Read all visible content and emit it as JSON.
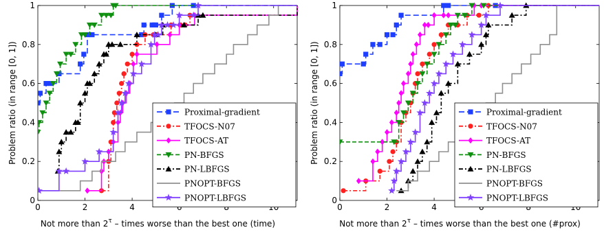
{
  "chart_data": [
    {
      "type": "line",
      "xlabel_pre": "Not more than 2",
      "xlabel_sup": "τ",
      "xlabel_post": " – times worse than the best one (time)",
      "ylabel": "Problem ratio (in range [0, 1])",
      "xlim": [
        0,
        11
      ],
      "ylim": [
        0,
        1
      ],
      "xticks": [
        0,
        2,
        4,
        6,
        8,
        10
      ],
      "yticks": [
        0,
        0.2,
        0.4,
        0.6,
        0.8,
        1
      ],
      "legend_position": "bottom-right",
      "grid": false,
      "series": [
        {
          "name": "Proximal-gradient",
          "color": "#1f3fff",
          "dash": "8,4",
          "marker": "square",
          "x": [
            0,
            0.1,
            0.35,
            0.55,
            0.9,
            1.8,
            1.95,
            2.1,
            2.3,
            4.4,
            4.5,
            4.85,
            4.95,
            5.0,
            5.25,
            5.7,
            6.6,
            11
          ],
          "y": [
            0.5,
            0.55,
            0.6,
            0.6,
            0.65,
            0.7,
            0.75,
            0.85,
            0.85,
            0.85,
            0.9,
            0.9,
            0.9,
            0.9,
            0.95,
            1.0,
            1.0,
            1.0
          ]
        },
        {
          "name": "TFOCS-N07",
          "color": "#ff2020",
          "dash": "6,3,2,3",
          "marker": "circle",
          "x": [
            2.7,
            3.0,
            3.1,
            3.2,
            3.25,
            3.35,
            3.45,
            3.55,
            3.65,
            3.8,
            4.0,
            4.2,
            4.55,
            4.9,
            5.05,
            5.65,
            6.05,
            6.25,
            6.45,
            11
          ],
          "y": [
            0.05,
            0.2,
            0.3,
            0.4,
            0.45,
            0.5,
            0.55,
            0.6,
            0.65,
            0.7,
            0.75,
            0.8,
            0.85,
            0.85,
            0.85,
            0.9,
            0.9,
            0.9,
            0.95,
            1.0
          ]
        },
        {
          "name": "TFOCS-AT",
          "color": "#ff00ff",
          "dash": "",
          "marker": "diamond",
          "x": [
            2.1,
            2.7,
            2.8,
            3.0,
            3.2,
            3.4,
            3.5,
            3.6,
            3.75,
            3.9,
            4.05,
            4.2,
            5.05,
            5.6,
            6.0,
            6.65,
            11
          ],
          "y": [
            0.05,
            0.15,
            0.2,
            0.25,
            0.3,
            0.4,
            0.45,
            0.5,
            0.55,
            0.6,
            0.7,
            0.75,
            0.8,
            0.85,
            0.9,
            0.95,
            1.0
          ]
        },
        {
          "name": "PN-BFGS",
          "color": "#109010",
          "dash": "6,3",
          "marker": "tri-down",
          "x": [
            0,
            0.05,
            0.2,
            0.35,
            0.5,
            0.65,
            0.8,
            0.95,
            1.2,
            1.4,
            1.6,
            1.85,
            2.0,
            2.2,
            2.4,
            2.7,
            2.9,
            3.1,
            3.2,
            3.3,
            11
          ],
          "y": [
            0.35,
            0.4,
            0.45,
            0.5,
            0.55,
            0.6,
            0.65,
            0.7,
            0.75,
            0.75,
            0.8,
            0.85,
            0.85,
            0.9,
            0.9,
            0.95,
            0.95,
            0.95,
            1.0,
            1.0,
            1.0
          ]
        },
        {
          "name": "PN-LBFGS",
          "color": "#000000",
          "dash": "6,3,2,3",
          "marker": "tri-up",
          "x": [
            0.85,
            0.9,
            1.0,
            1.2,
            1.4,
            1.6,
            1.7,
            1.8,
            2.0,
            2.1,
            2.2,
            2.4,
            2.6,
            2.8,
            2.9,
            3.0,
            3.15,
            3.5,
            4.2,
            5.0,
            5.3,
            6.2,
            6.8,
            7.0,
            11
          ],
          "y": [
            0.15,
            0.25,
            0.3,
            0.35,
            0.35,
            0.4,
            0.4,
            0.5,
            0.55,
            0.6,
            0.6,
            0.65,
            0.7,
            0.75,
            0.75,
            0.8,
            0.8,
            0.8,
            0.85,
            0.85,
            0.9,
            0.9,
            0.95,
            0.95,
            1.0
          ]
        },
        {
          "name": "PNOPT-BFGS",
          "color": "#909090",
          "dash": "",
          "marker": "none",
          "x": [
            0.15,
            1.2,
            1.8,
            2.3,
            2.7,
            3.3,
            3.7,
            4.2,
            4.8,
            5.3,
            5.8,
            6.2,
            6.6,
            7.0,
            7.5,
            8.0,
            8.3,
            8.9,
            9.3,
            9.8,
            10.2,
            11
          ],
          "y": [
            0.05,
            0.05,
            0.1,
            0.15,
            0.2,
            0.25,
            0.3,
            0.35,
            0.4,
            0.45,
            0.5,
            0.55,
            0.6,
            0.65,
            0.7,
            0.75,
            0.8,
            0.85,
            0.9,
            0.95,
            1.0,
            1.0
          ]
        },
        {
          "name": "PNOPT-LBFGS",
          "color": "#8040ff",
          "dash": "",
          "marker": "star",
          "x": [
            0.05,
            0.9,
            1.2,
            2.0,
            2.6,
            3.2,
            3.4,
            3.55,
            3.7,
            3.85,
            4.05,
            4.4,
            4.8,
            4.95,
            5.1,
            5.25,
            5.5,
            5.75,
            6.0,
            6.6,
            6.8,
            11
          ],
          "y": [
            0.05,
            0.15,
            0.15,
            0.2,
            0.25,
            0.35,
            0.45,
            0.5,
            0.55,
            0.6,
            0.65,
            0.7,
            0.8,
            0.85,
            0.85,
            0.9,
            0.9,
            0.9,
            0.95,
            0.95,
            1.0,
            1.0
          ]
        }
      ]
    },
    {
      "type": "line",
      "xlabel_pre": "Not more than 2",
      "xlabel_sup": "τ",
      "xlabel_post": " – times worse than the best one (#prox)",
      "ylabel": "Problem ratio (in range [0, 1])",
      "xlim": [
        0,
        11
      ],
      "ylim": [
        0,
        1
      ],
      "xticks": [
        0,
        2,
        4,
        6,
        8,
        10
      ],
      "yticks": [
        0,
        0.2,
        0.4,
        0.6,
        0.8,
        1
      ],
      "legend_position": "bottom-right",
      "grid": false,
      "series": [
        {
          "name": "Proximal-gradient",
          "color": "#1f3fff",
          "dash": "8,4",
          "marker": "square",
          "x": [
            0,
            0.1,
            1.0,
            1.1,
            1.4,
            1.7,
            2.0,
            2.25,
            2.4,
            2.6,
            4.4,
            4.6,
            6.6,
            11
          ],
          "y": [
            0.65,
            0.7,
            0.7,
            0.75,
            0.8,
            0.8,
            0.85,
            0.85,
            0.9,
            0.95,
            1.0,
            1.0,
            1.0,
            1.0
          ]
        },
        {
          "name": "TFOCS-N07",
          "color": "#ff2020",
          "dash": "6,3,2,3",
          "marker": "circle",
          "x": [
            0.15,
            1.1,
            1.7,
            2.1,
            2.25,
            2.4,
            2.6,
            2.8,
            3.0,
            3.1,
            3.2,
            3.3,
            3.5,
            3.8,
            4.0,
            4.3,
            4.6,
            5.0,
            5.4,
            5.9,
            6.3,
            11
          ],
          "y": [
            0.05,
            0.1,
            0.15,
            0.2,
            0.25,
            0.3,
            0.4,
            0.45,
            0.5,
            0.55,
            0.6,
            0.65,
            0.7,
            0.75,
            0.8,
            0.85,
            0.9,
            0.9,
            0.95,
            0.95,
            1.0,
            1.0
          ]
        },
        {
          "name": "TFOCS-AT",
          "color": "#ff00ff",
          "dash": "",
          "marker": "diamond",
          "x": [
            0.8,
            1.4,
            1.6,
            1.8,
            2.0,
            2.2,
            2.4,
            2.5,
            2.6,
            2.7,
            2.9,
            3.0,
            3.1,
            3.25,
            3.4,
            3.6,
            3.75,
            4.0,
            4.4,
            4.6,
            5.7,
            6.0,
            11
          ],
          "y": [
            0.1,
            0.2,
            0.25,
            0.3,
            0.35,
            0.4,
            0.45,
            0.5,
            0.55,
            0.6,
            0.65,
            0.7,
            0.75,
            0.8,
            0.85,
            0.9,
            0.9,
            0.95,
            0.95,
            0.95,
            1.0,
            1.0,
            1.0
          ]
        },
        {
          "name": "PN-BFGS",
          "color": "#109010",
          "dash": "6,3",
          "marker": "tri-down",
          "x": [
            0,
            2.3,
            2.5,
            2.7,
            2.9,
            3.1,
            3.3,
            3.5,
            3.7,
            4.0,
            4.2,
            4.5,
            4.7,
            4.9,
            5.0,
            5.3,
            5.6,
            6.1,
            11
          ],
          "y": [
            0.3,
            0.3,
            0.4,
            0.45,
            0.5,
            0.55,
            0.6,
            0.65,
            0.7,
            0.75,
            0.8,
            0.85,
            0.9,
            0.9,
            0.95,
            0.95,
            1.0,
            1.0,
            1.0
          ]
        },
        {
          "name": "PN-LBFGS",
          "color": "#000000",
          "dash": "6,3,2,3",
          "marker": "tri-up",
          "x": [
            2.6,
            2.9,
            3.1,
            3.3,
            3.5,
            3.7,
            3.9,
            4.1,
            4.3,
            4.6,
            5.0,
            5.5,
            6.0,
            6.2,
            6.3,
            7.3,
            7.9,
            11
          ],
          "y": [
            0.05,
            0.1,
            0.15,
            0.2,
            0.25,
            0.3,
            0.4,
            0.45,
            0.55,
            0.6,
            0.7,
            0.75,
            0.8,
            0.85,
            0.9,
            0.95,
            1.0,
            1.0
          ]
        },
        {
          "name": "PNOPT-BFGS",
          "color": "#909090",
          "dash": "",
          "marker": "none",
          "x": [
            2.4,
            2.9,
            3.3,
            3.8,
            4.2,
            4.6,
            5.0,
            5.4,
            5.8,
            6.2,
            6.6,
            6.9,
            7.3,
            7.7,
            8.1,
            8.5,
            8.9,
            9.2,
            11
          ],
          "y": [
            0.05,
            0.1,
            0.15,
            0.2,
            0.25,
            0.3,
            0.35,
            0.4,
            0.45,
            0.5,
            0.55,
            0.6,
            0.65,
            0.7,
            0.75,
            0.8,
            0.85,
            1.0,
            1.0
          ]
        },
        {
          "name": "PNOPT-LBFGS",
          "color": "#8040ff",
          "dash": "",
          "marker": "star",
          "x": [
            2.2,
            2.3,
            2.4,
            2.6,
            2.8,
            3.0,
            3.2,
            3.4,
            3.6,
            3.8,
            4.0,
            4.2,
            4.5,
            4.8,
            5.2,
            5.6,
            6.0,
            6.2,
            6.8,
            11
          ],
          "y": [
            0.05,
            0.1,
            0.15,
            0.2,
            0.25,
            0.3,
            0.35,
            0.45,
            0.5,
            0.55,
            0.6,
            0.65,
            0.7,
            0.75,
            0.8,
            0.85,
            0.9,
            0.95,
            1.0,
            1.0
          ]
        }
      ]
    }
  ]
}
